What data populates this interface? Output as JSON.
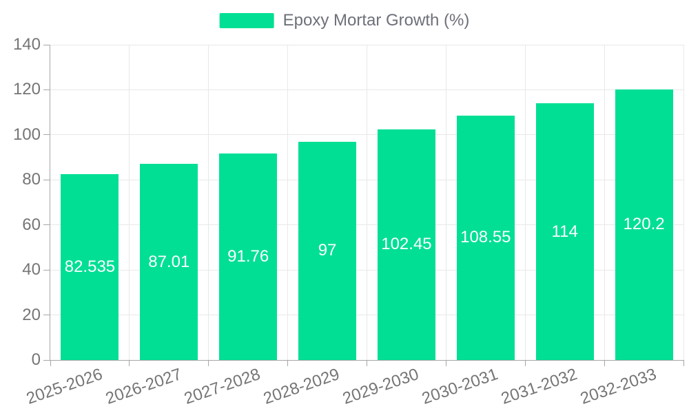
{
  "legend": {
    "label": "Epoxy Mortar Growth (%)"
  },
  "chart_data": {
    "type": "bar",
    "title": "",
    "categories": [
      "2025-2026",
      "2026-2027",
      "2027-2028",
      "2028-2029",
      "2029-2030",
      "2030-2031",
      "2031-2032",
      "2032-2033"
    ],
    "series": [
      {
        "name": "Epoxy Mortar Growth (%)",
        "values": [
          82.535,
          87.01,
          91.76,
          97,
          102.45,
          108.55,
          114,
          120.2
        ]
      }
    ],
    "value_labels": [
      "82.535",
      "87.01",
      "91.76",
      "97",
      "102.45",
      "108.55",
      "114",
      "120.2"
    ],
    "xlabel": "",
    "ylabel": "",
    "ylim": [
      0,
      140
    ],
    "yticks": [
      0,
      20,
      40,
      60,
      80,
      100,
      120,
      140
    ],
    "grid": true,
    "legend_position": "top-center",
    "value_label_position": "inside-center",
    "colors": {
      "bar": "#00DF94",
      "value_label": "#FFFFFF",
      "axis_text": "#757575",
      "legend_text": "#6E7079",
      "grid_line": "#E8E8E8",
      "axis_line": "#A6A6A6",
      "background": "#FFFFFF"
    }
  }
}
